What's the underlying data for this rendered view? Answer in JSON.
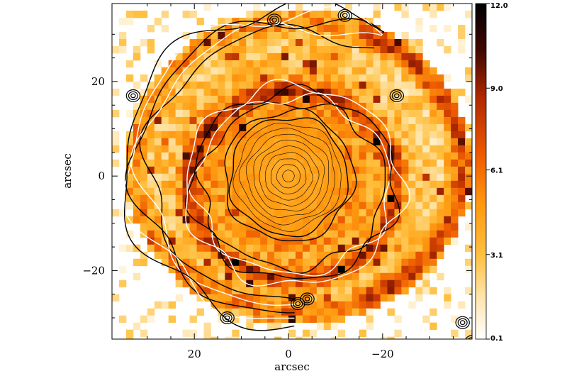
{
  "chart_data": {
    "type": "heatmap",
    "title": "",
    "xlabel": "arcsec",
    "ylabel": "arcsec",
    "xlim": [
      37.5,
      -39
    ],
    "ylim": [
      -34.5,
      36.5
    ],
    "xticks": [
      {
        "value": 20,
        "label": "20"
      },
      {
        "value": 0,
        "label": "0"
      },
      {
        "value": -20,
        "label": "−20"
      }
    ],
    "yticks": [
      {
        "value": 20,
        "label": "20"
      },
      {
        "value": 0,
        "label": "0"
      },
      {
        "value": -20,
        "label": "−20"
      }
    ],
    "colorbar": {
      "range": [
        0.1,
        12.0
      ],
      "ticks": [
        {
          "value": 12.0,
          "label": "12.0"
        },
        {
          "value": 9.0,
          "label": "9.0"
        },
        {
          "value": 6.1,
          "label": "6.1"
        },
        {
          "value": 3.1,
          "label": "3.1"
        },
        {
          "value": 0.1,
          "label": "0.1"
        }
      ],
      "colors": [
        "#ffffff",
        "#ffe6b0",
        "#ffc040",
        "#ff9a10",
        "#ee5a00",
        "#b02800",
        "#400800",
        "#000000"
      ]
    },
    "grid": false,
    "overlay": "contours (black and white)",
    "features": {
      "core": {
        "center": [
          0,
          0
        ],
        "radius": 13
      },
      "inner_ring": {
        "center": [
          -1,
          -2
        ],
        "rx": 22,
        "ry": 20
      },
      "outer_arc": {
        "center": [
          -2,
          2
        ],
        "rx": 35,
        "ry": 31
      }
    }
  }
}
